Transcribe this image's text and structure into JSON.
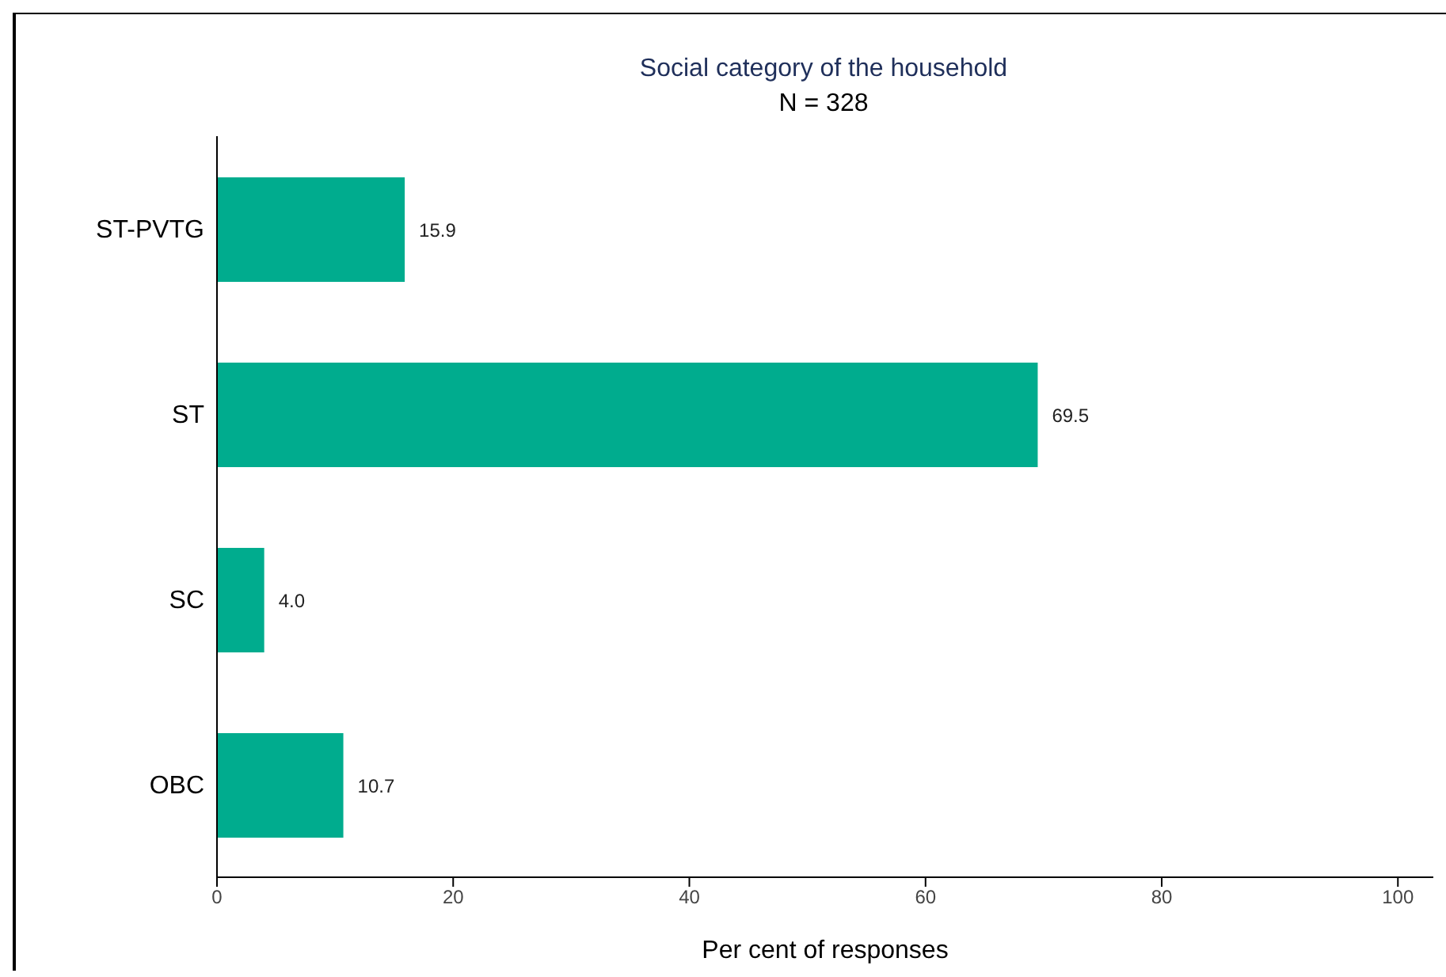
{
  "chart_data": {
    "type": "bar",
    "orientation": "horizontal",
    "title": "Social category of the household",
    "subtitle": "N = 328",
    "xlabel": "Per cent of responses",
    "categories": [
      "ST-PVTG",
      "ST",
      "SC",
      "OBC"
    ],
    "values": [
      15.9,
      69.5,
      4.0,
      10.7
    ],
    "value_labels": [
      "15.9",
      "69.5",
      "4.0",
      "10.7"
    ],
    "color": "#00ac8e",
    "xlim": [
      0,
      103
    ],
    "xticks": [
      0,
      20,
      40,
      60,
      80,
      100
    ]
  }
}
